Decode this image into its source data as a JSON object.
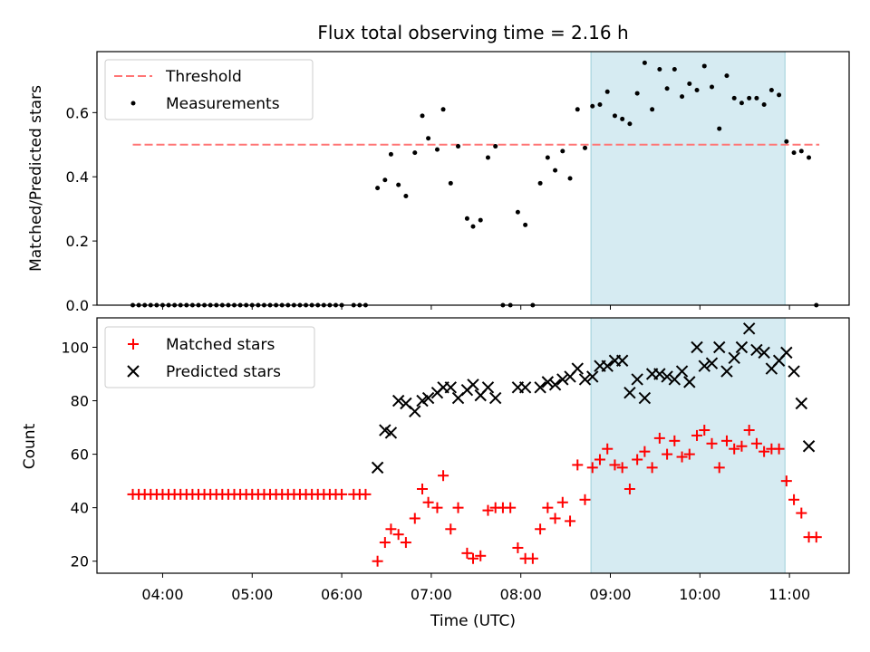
{
  "chart_data": [
    {
      "type": "scatter",
      "title": "Flux total observing time = 2.16 h",
      "xlabel": "",
      "ylabel": "Matched/Predicted stars",
      "ylim": [
        0,
        0.79
      ],
      "yticks": [
        0.0,
        0.2,
        0.4,
        0.6
      ],
      "ytick_labels": [
        "0.0",
        "0.2",
        "0.4",
        "0.6"
      ],
      "grid": false,
      "legend_placement": "upper-left",
      "shaded_region": {
        "from": "08:47",
        "to": "10:57",
        "color": "#add8e6"
      },
      "threshold": {
        "name": "Threshold",
        "y": 0.5,
        "from": "03:40",
        "to": "11:20",
        "color": "#ff7575",
        "style": "dashed"
      },
      "series": [
        {
          "name": "Measurements",
          "marker": "dot",
          "color": "#000000",
          "points": [
            [
              "03:40",
              0
            ],
            [
              "03:44",
              0
            ],
            [
              "03:48",
              0
            ],
            [
              "03:52",
              0
            ],
            [
              "03:56",
              0
            ],
            [
              "04:00",
              0
            ],
            [
              "04:04",
              0
            ],
            [
              "04:08",
              0
            ],
            [
              "04:12",
              0
            ],
            [
              "04:16",
              0
            ],
            [
              "04:20",
              0
            ],
            [
              "04:24",
              0
            ],
            [
              "04:28",
              0
            ],
            [
              "04:32",
              0
            ],
            [
              "04:36",
              0
            ],
            [
              "04:40",
              0
            ],
            [
              "04:44",
              0
            ],
            [
              "04:48",
              0
            ],
            [
              "04:52",
              0
            ],
            [
              "04:56",
              0
            ],
            [
              "05:00",
              0
            ],
            [
              "05:04",
              0
            ],
            [
              "05:08",
              0
            ],
            [
              "05:12",
              0
            ],
            [
              "05:16",
              0
            ],
            [
              "05:20",
              0
            ],
            [
              "05:24",
              0
            ],
            [
              "05:28",
              0
            ],
            [
              "05:32",
              0
            ],
            [
              "05:36",
              0
            ],
            [
              "05:40",
              0
            ],
            [
              "05:44",
              0
            ],
            [
              "05:48",
              0
            ],
            [
              "05:52",
              0
            ],
            [
              "05:56",
              0
            ],
            [
              "06:00",
              0
            ],
            [
              "06:08",
              0
            ],
            [
              "06:12",
              0
            ],
            [
              "06:16",
              0
            ],
            [
              "06:24",
              0.365
            ],
            [
              "06:29",
              0.39
            ],
            [
              "06:33",
              0.47
            ],
            [
              "06:38",
              0.375
            ],
            [
              "06:43",
              0.34
            ],
            [
              "06:49",
              0.475
            ],
            [
              "06:54",
              0.59
            ],
            [
              "06:58",
              0.52
            ],
            [
              "07:04",
              0.485
            ],
            [
              "07:08",
              0.61
            ],
            [
              "07:13",
              0.38
            ],
            [
              "07:18",
              0.495
            ],
            [
              "07:24",
              0.27
            ],
            [
              "07:28",
              0.245
            ],
            [
              "07:33",
              0.265
            ],
            [
              "07:38",
              0.46
            ],
            [
              "07:43",
              0.495
            ],
            [
              "07:48",
              0
            ],
            [
              "07:53",
              0
            ],
            [
              "07:58",
              0.29
            ],
            [
              "08:03",
              0.25
            ],
            [
              "08:08",
              0
            ],
            [
              "08:13",
              0.38
            ],
            [
              "08:18",
              0.46
            ],
            [
              "08:23",
              0.42
            ],
            [
              "08:28",
              0.48
            ],
            [
              "08:33",
              0.395
            ],
            [
              "08:38",
              0.61
            ],
            [
              "08:43",
              0.49
            ],
            [
              "08:48",
              0.62
            ],
            [
              "08:53",
              0.625
            ],
            [
              "08:58",
              0.665
            ],
            [
              "09:03",
              0.59
            ],
            [
              "09:08",
              0.58
            ],
            [
              "09:13",
              0.565
            ],
            [
              "09:18",
              0.66
            ],
            [
              "09:23",
              0.755
            ],
            [
              "09:28",
              0.61
            ],
            [
              "09:33",
              0.735
            ],
            [
              "09:38",
              0.675
            ],
            [
              "09:43",
              0.735
            ],
            [
              "09:48",
              0.65
            ],
            [
              "09:53",
              0.69
            ],
            [
              "09:58",
              0.67
            ],
            [
              "10:03",
              0.745
            ],
            [
              "10:08",
              0.68
            ],
            [
              "10:13",
              0.55
            ],
            [
              "10:18",
              0.715
            ],
            [
              "10:23",
              0.645
            ],
            [
              "10:28",
              0.63
            ],
            [
              "10:33",
              0.645
            ],
            [
              "10:38",
              0.645
            ],
            [
              "10:43",
              0.625
            ],
            [
              "10:48",
              0.67
            ],
            [
              "10:53",
              0.655
            ],
            [
              "10:58",
              0.51
            ],
            [
              "11:03",
              0.475
            ],
            [
              "11:08",
              0.48
            ],
            [
              "11:13",
              0.46
            ],
            [
              "11:18",
              0
            ]
          ]
        }
      ]
    },
    {
      "type": "scatter",
      "title": "",
      "xlabel": "Time (UTC)",
      "ylabel": "Count",
      "ylim": [
        15.5,
        111
      ],
      "yticks": [
        20,
        40,
        60,
        80,
        100
      ],
      "ytick_labels": [
        "20",
        "40",
        "60",
        "80",
        "100"
      ],
      "xlim": [
        "03:16",
        "11:40"
      ],
      "xticks": [
        "04:00",
        "05:00",
        "06:00",
        "07:00",
        "08:00",
        "09:00",
        "10:00",
        "11:00"
      ],
      "grid": false,
      "legend_placement": "upper-left",
      "shaded_region": {
        "from": "08:47",
        "to": "10:57",
        "color": "#add8e6"
      },
      "series": [
        {
          "name": "Matched stars",
          "marker": "plus",
          "color": "#ff0000",
          "points": [
            [
              "03:40",
              45
            ],
            [
              "03:44",
              45
            ],
            [
              "03:48",
              45
            ],
            [
              "03:52",
              45
            ],
            [
              "03:56",
              45
            ],
            [
              "04:00",
              45
            ],
            [
              "04:04",
              45
            ],
            [
              "04:08",
              45
            ],
            [
              "04:12",
              45
            ],
            [
              "04:16",
              45
            ],
            [
              "04:20",
              45
            ],
            [
              "04:24",
              45
            ],
            [
              "04:28",
              45
            ],
            [
              "04:32",
              45
            ],
            [
              "04:36",
              45
            ],
            [
              "04:40",
              45
            ],
            [
              "04:44",
              45
            ],
            [
              "04:48",
              45
            ],
            [
              "04:52",
              45
            ],
            [
              "04:56",
              45
            ],
            [
              "05:00",
              45
            ],
            [
              "05:04",
              45
            ],
            [
              "05:08",
              45
            ],
            [
              "05:12",
              45
            ],
            [
              "05:16",
              45
            ],
            [
              "05:20",
              45
            ],
            [
              "05:24",
              45
            ],
            [
              "05:28",
              45
            ],
            [
              "05:32",
              45
            ],
            [
              "05:36",
              45
            ],
            [
              "05:40",
              45
            ],
            [
              "05:44",
              45
            ],
            [
              "05:48",
              45
            ],
            [
              "05:52",
              45
            ],
            [
              "05:56",
              45
            ],
            [
              "06:00",
              45
            ],
            [
              "06:08",
              45
            ],
            [
              "06:12",
              45
            ],
            [
              "06:16",
              45
            ],
            [
              "06:24",
              20
            ],
            [
              "06:29",
              27
            ],
            [
              "06:33",
              32
            ],
            [
              "06:38",
              30
            ],
            [
              "06:43",
              27
            ],
            [
              "06:49",
              36
            ],
            [
              "06:54",
              47
            ],
            [
              "06:58",
              42
            ],
            [
              "07:04",
              40
            ],
            [
              "07:08",
              52
            ],
            [
              "07:13",
              32
            ],
            [
              "07:18",
              40
            ],
            [
              "07:24",
              23
            ],
            [
              "07:28",
              21
            ],
            [
              "07:33",
              22
            ],
            [
              "07:38",
              39
            ],
            [
              "07:43",
              40
            ],
            [
              "07:48",
              40
            ],
            [
              "07:53",
              40
            ],
            [
              "07:58",
              25
            ],
            [
              "08:03",
              21
            ],
            [
              "08:08",
              21
            ],
            [
              "08:13",
              32
            ],
            [
              "08:18",
              40
            ],
            [
              "08:23",
              36
            ],
            [
              "08:28",
              42
            ],
            [
              "08:33",
              35
            ],
            [
              "08:38",
              56
            ],
            [
              "08:43",
              43
            ],
            [
              "08:48",
              55
            ],
            [
              "08:53",
              58
            ],
            [
              "08:58",
              62
            ],
            [
              "09:03",
              56
            ],
            [
              "09:08",
              55
            ],
            [
              "09:13",
              47
            ],
            [
              "09:18",
              58
            ],
            [
              "09:23",
              61
            ],
            [
              "09:28",
              55
            ],
            [
              "09:33",
              66
            ],
            [
              "09:38",
              60
            ],
            [
              "09:43",
              65
            ],
            [
              "09:48",
              59
            ],
            [
              "09:53",
              60
            ],
            [
              "09:58",
              67
            ],
            [
              "10:03",
              69
            ],
            [
              "10:08",
              64
            ],
            [
              "10:13",
              55
            ],
            [
              "10:18",
              65
            ],
            [
              "10:23",
              62
            ],
            [
              "10:28",
              63
            ],
            [
              "10:33",
              69
            ],
            [
              "10:38",
              64
            ],
            [
              "10:43",
              61
            ],
            [
              "10:48",
              62
            ],
            [
              "10:53",
              62
            ],
            [
              "10:58",
              50
            ],
            [
              "11:03",
              43
            ],
            [
              "11:08",
              38
            ],
            [
              "11:13",
              29
            ],
            [
              "11:18",
              29
            ]
          ]
        },
        {
          "name": "Predicted stars",
          "marker": "x",
          "color": "#000000",
          "points": [
            [
              "06:24",
              55
            ],
            [
              "06:29",
              69
            ],
            [
              "06:33",
              68
            ],
            [
              "06:38",
              80
            ],
            [
              "06:43",
              79
            ],
            [
              "06:49",
              76
            ],
            [
              "06:54",
              80
            ],
            [
              "06:58",
              81
            ],
            [
              "07:04",
              83
            ],
            [
              "07:08",
              85
            ],
            [
              "07:13",
              85
            ],
            [
              "07:18",
              81
            ],
            [
              "07:24",
              84
            ],
            [
              "07:28",
              86
            ],
            [
              "07:33",
              82
            ],
            [
              "07:38",
              85
            ],
            [
              "07:43",
              81
            ],
            [
              "07:58",
              85
            ],
            [
              "08:03",
              85
            ],
            [
              "08:13",
              85
            ],
            [
              "08:18",
              87
            ],
            [
              "08:23",
              86
            ],
            [
              "08:28",
              88
            ],
            [
              "08:33",
              89
            ],
            [
              "08:38",
              92
            ],
            [
              "08:43",
              88
            ],
            [
              "08:48",
              89
            ],
            [
              "08:53",
              93
            ],
            [
              "08:58",
              93
            ],
            [
              "09:03",
              95
            ],
            [
              "09:08",
              95
            ],
            [
              "09:13",
              83
            ],
            [
              "09:18",
              88
            ],
            [
              "09:23",
              81
            ],
            [
              "09:28",
              90
            ],
            [
              "09:33",
              90
            ],
            [
              "09:38",
              89
            ],
            [
              "09:43",
              88
            ],
            [
              "09:48",
              91
            ],
            [
              "09:53",
              87
            ],
            [
              "09:58",
              100
            ],
            [
              "10:03",
              93
            ],
            [
              "10:08",
              94
            ],
            [
              "10:13",
              100
            ],
            [
              "10:18",
              91
            ],
            [
              "10:23",
              96
            ],
            [
              "10:28",
              100
            ],
            [
              "10:33",
              107
            ],
            [
              "10:38",
              99
            ],
            [
              "10:43",
              98
            ],
            [
              "10:48",
              92
            ],
            [
              "10:53",
              95
            ],
            [
              "10:58",
              98
            ],
            [
              "11:03",
              91
            ],
            [
              "11:08",
              79
            ],
            [
              "11:13",
              63
            ]
          ]
        }
      ]
    }
  ]
}
